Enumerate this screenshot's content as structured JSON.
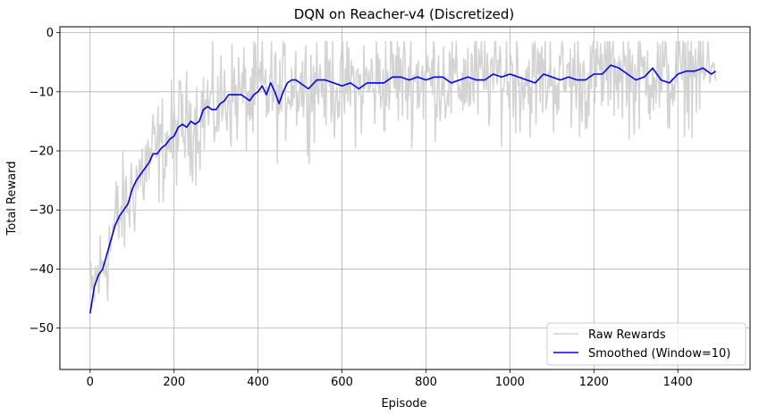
{
  "chart_data": {
    "type": "line",
    "title": "DQN on Reacher-v4 (Discretized)",
    "xlabel": "Episode",
    "ylabel": "Total Reward",
    "xlim": [
      -72,
      1572
    ],
    "ylim": [
      -57,
      1
    ],
    "xticks": [
      0,
      200,
      400,
      600,
      800,
      1000,
      1200,
      1400
    ],
    "yticks": [
      0,
      -10,
      -20,
      -30,
      -40,
      -50
    ],
    "grid": true,
    "legend_position": "lower-right",
    "raw_noise_amplitude": 4.5,
    "series": [
      {
        "name": "Raw Rewards",
        "color": "#d3d3d3",
        "role": "raw"
      },
      {
        "name": "Smoothed (Window=10)",
        "color": "#0000ff",
        "role": "smoothed",
        "x": [
          0,
          10,
          20,
          30,
          40,
          50,
          60,
          70,
          80,
          90,
          100,
          110,
          120,
          130,
          140,
          150,
          160,
          170,
          180,
          190,
          200,
          210,
          220,
          230,
          240,
          250,
          260,
          270,
          280,
          290,
          300,
          310,
          320,
          330,
          340,
          350,
          360,
          370,
          380,
          390,
          400,
          410,
          420,
          430,
          440,
          450,
          460,
          470,
          480,
          490,
          500,
          520,
          540,
          560,
          580,
          600,
          620,
          640,
          660,
          680,
          700,
          720,
          740,
          760,
          780,
          800,
          820,
          840,
          860,
          880,
          900,
          920,
          940,
          960,
          980,
          1000,
          1020,
          1040,
          1060,
          1080,
          1100,
          1120,
          1140,
          1160,
          1180,
          1200,
          1220,
          1240,
          1260,
          1280,
          1300,
          1320,
          1340,
          1360,
          1380,
          1400,
          1420,
          1440,
          1460,
          1480,
          1490
        ],
        "values": [
          -47.5,
          -43,
          -41,
          -40,
          -37.5,
          -35,
          -32.5,
          -31,
          -30,
          -29,
          -26.5,
          -25,
          -24,
          -23,
          -22,
          -20.5,
          -20.5,
          -19.5,
          -19,
          -18,
          -17.5,
          -16,
          -15.5,
          -16,
          -15,
          -15.5,
          -15,
          -13,
          -12.5,
          -13,
          -13,
          -12,
          -11.5,
          -10.5,
          -10.5,
          -10.5,
          -10.5,
          -11,
          -11.5,
          -10.5,
          -10,
          -9,
          -10.5,
          -8.5,
          -10,
          -12,
          -10,
          -8.5,
          -8,
          -8,
          -8.5,
          -9.5,
          -8,
          -8,
          -8.5,
          -9,
          -8.5,
          -9.5,
          -8.5,
          -8.5,
          -8.5,
          -7.5,
          -7.5,
          -8,
          -7.5,
          -8,
          -7.5,
          -7.5,
          -8.5,
          -8,
          -7.5,
          -8,
          -8,
          -7,
          -7.5,
          -7,
          -7.5,
          -8,
          -8.5,
          -7,
          -7.5,
          -8,
          -7.5,
          -8,
          -8,
          -7,
          -7,
          -5.5,
          -6,
          -7,
          -8,
          -7.5,
          -6,
          -8,
          -8.5,
          -7,
          -6.5,
          -6.5,
          -6,
          -7,
          -6.5
        ]
      }
    ]
  }
}
